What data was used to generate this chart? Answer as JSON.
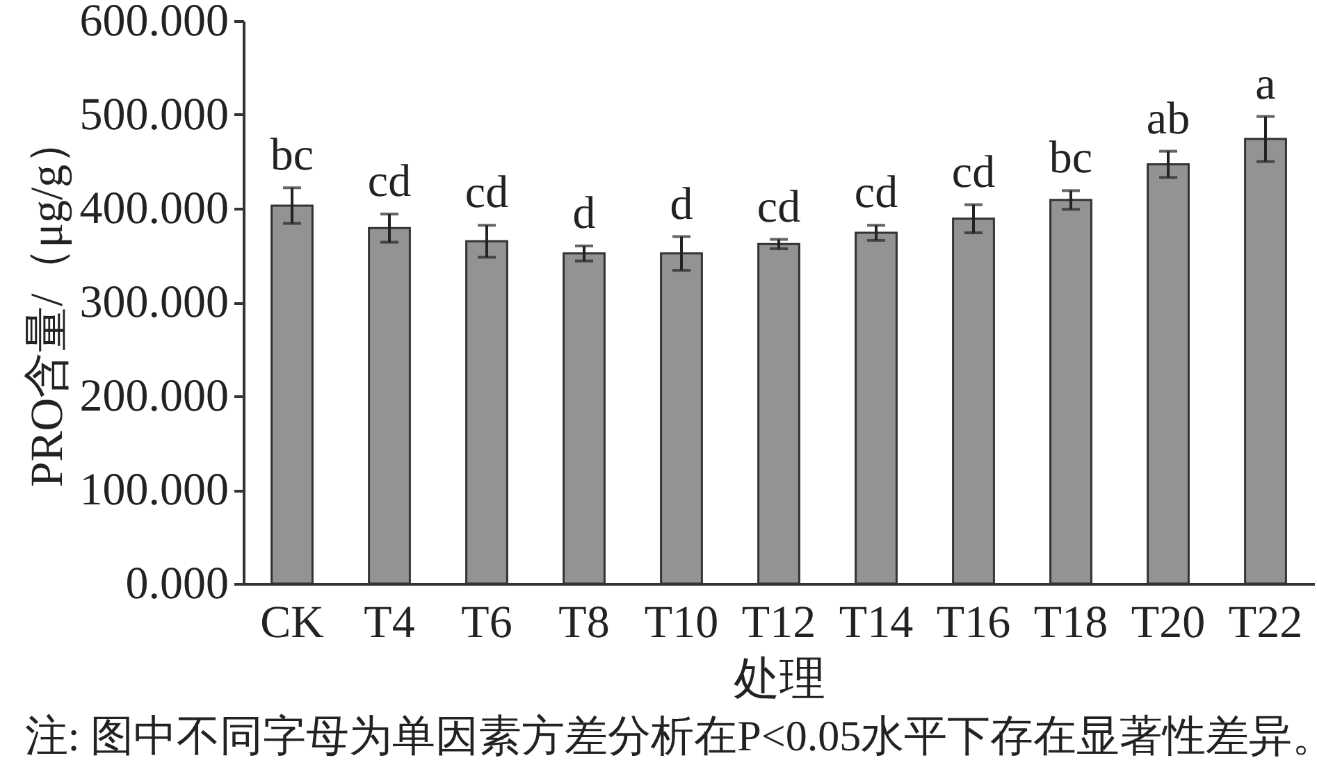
{
  "chart_data": {
    "type": "bar",
    "xlabel": "处理",
    "ylabel": "PRO含量/（μg/g）",
    "categories": [
      "CK",
      "T4",
      "T6",
      "T8",
      "T10",
      "T12",
      "T14",
      "T16",
      "T18",
      "T20",
      "T22"
    ],
    "values": [
      403,
      379,
      365,
      352,
      352,
      362,
      374,
      389,
      409,
      447,
      474
    ],
    "errors": [
      19,
      15,
      17,
      8,
      18,
      5,
      8,
      15,
      10,
      14,
      24
    ],
    "color": "#939393",
    "ylim": [
      0,
      600
    ],
    "yticks": [
      {
        "value": 0,
        "label": "0.000"
      },
      {
        "value": 100,
        "label": "100.000"
      },
      {
        "value": 200,
        "label": "200.000"
      },
      {
        "value": 300,
        "label": "300.000"
      },
      {
        "value": 400,
        "label": "400.000"
      },
      {
        "value": 500,
        "label": "500.000"
      },
      {
        "value": 600,
        "label": "600.000"
      }
    ],
    "annotations": [
      {
        "text": "bc",
        "x": "CK",
        "y": 422
      },
      {
        "text": "cd",
        "x": "T4",
        "y": 394
      },
      {
        "text": "cd",
        "x": "T6",
        "y": 382
      },
      {
        "text": "d",
        "x": "T8",
        "y": 360
      },
      {
        "text": "d",
        "x": "T10",
        "y": 370
      },
      {
        "text": "cd",
        "x": "T12",
        "y": 367
      },
      {
        "text": "cd",
        "x": "T14",
        "y": 382
      },
      {
        "text": "cd",
        "x": "T16",
        "y": 404
      },
      {
        "text": "bc",
        "x": "T18",
        "y": 419
      },
      {
        "text": "ab",
        "x": "T20",
        "y": 461
      },
      {
        "text": "a",
        "x": "T22",
        "y": 498
      },
      "注: 图中不同字母为单因素方差分析在P<0.05水平下存在显著性差异。"
    ]
  }
}
